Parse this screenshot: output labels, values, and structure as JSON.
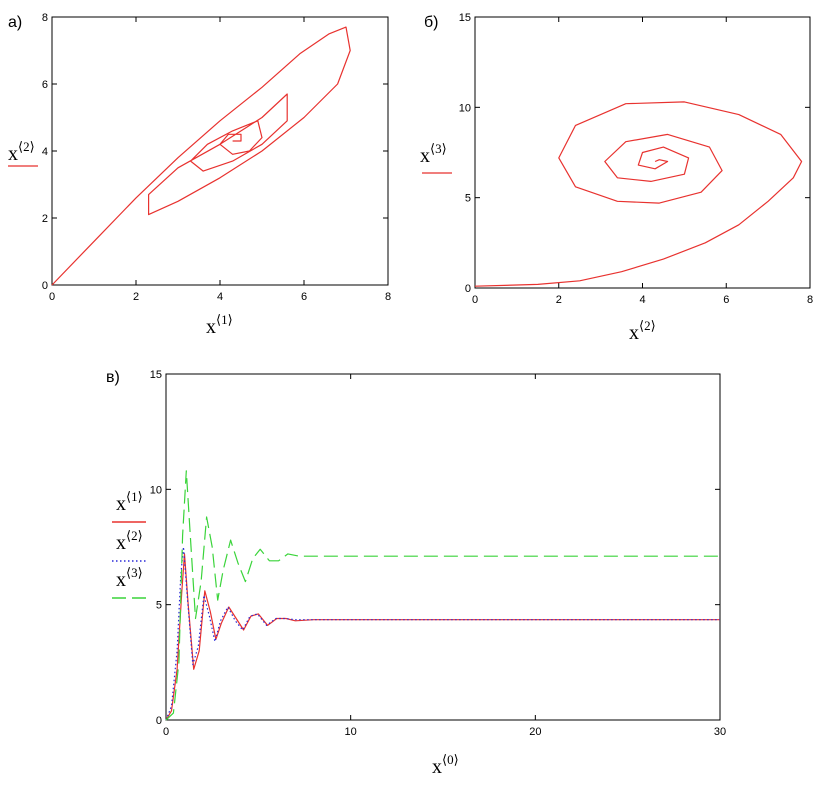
{
  "chart_data": [
    {
      "type": "line",
      "panel_label": "а)",
      "xlabel": {
        "base": "x",
        "sup": "⟨1⟩"
      },
      "ylabel": {
        "base": "x",
        "sup": "⟨2⟩"
      },
      "xlim": [
        0,
        8
      ],
      "ylim": [
        0,
        8
      ],
      "xticks": [
        "0",
        "2",
        "4",
        "6",
        "8"
      ],
      "yticks": [
        "0",
        "2",
        "4",
        "6",
        "8"
      ],
      "series": [
        {
          "color": "#e8322f",
          "dash": "solid",
          "x": [
            0.0,
            1.0,
            2.0,
            3.0,
            4.0,
            5.0,
            5.9,
            6.6,
            7.0,
            7.1,
            6.8,
            6.0,
            5.0,
            4.0,
            3.0,
            2.3,
            2.3,
            3.0,
            4.0,
            5.0,
            5.6,
            5.6,
            5.0,
            4.3,
            3.6,
            3.3,
            3.7,
            4.3,
            4.9,
            5.0,
            4.7,
            4.3,
            4.0,
            4.2,
            4.5,
            4.5,
            4.3
          ],
          "y": [
            0.0,
            1.3,
            2.6,
            3.8,
            4.9,
            5.9,
            6.9,
            7.5,
            7.7,
            7.0,
            6.0,
            5.0,
            4.0,
            3.2,
            2.5,
            2.1,
            2.7,
            3.5,
            4.2,
            5.0,
            5.7,
            4.9,
            4.2,
            3.7,
            3.4,
            3.7,
            4.2,
            4.6,
            4.9,
            4.4,
            4.0,
            3.9,
            4.2,
            4.5,
            4.5,
            4.3,
            4.3
          ]
        }
      ]
    },
    {
      "type": "line",
      "panel_label": "б)",
      "xlabel": {
        "base": "x",
        "sup": "⟨2⟩"
      },
      "ylabel": {
        "base": "x",
        "sup": "⟨3⟩"
      },
      "xlim": [
        0,
        8
      ],
      "ylim": [
        0,
        15
      ],
      "xticks": [
        "0",
        "2",
        "4",
        "6",
        "8"
      ],
      "yticks": [
        "0",
        "5",
        "10",
        "15"
      ],
      "series": [
        {
          "color": "#e8322f",
          "dash": "solid",
          "x": [
            0.0,
            1.5,
            2.5,
            3.5,
            4.5,
            5.5,
            6.3,
            7.0,
            7.6,
            7.8,
            7.3,
            6.3,
            5.0,
            3.6,
            2.4,
            2.0,
            2.4,
            3.4,
            4.4,
            5.4,
            5.9,
            5.6,
            4.6,
            3.6,
            3.1,
            3.4,
            4.2,
            5.0,
            5.1,
            4.5,
            4.0,
            3.9,
            4.3,
            4.6,
            4.4,
            4.3
          ],
          "y": [
            0.1,
            0.2,
            0.4,
            0.9,
            1.6,
            2.5,
            3.5,
            4.8,
            6.1,
            7.0,
            8.5,
            9.6,
            10.3,
            10.2,
            9.0,
            7.2,
            5.6,
            4.8,
            4.7,
            5.3,
            6.5,
            7.8,
            8.5,
            8.1,
            7.0,
            6.1,
            5.9,
            6.3,
            7.2,
            7.8,
            7.5,
            6.8,
            6.6,
            7.0,
            7.1,
            7.0
          ]
        }
      ]
    },
    {
      "type": "line",
      "panel_label": "в)",
      "xlabel": {
        "base": "x",
        "sup": "⟨0⟩"
      },
      "xlim": [
        0,
        30
      ],
      "ylim": [
        0,
        15
      ],
      "xticks": [
        "0",
        "10",
        "20",
        "30"
      ],
      "yticks": [
        "0",
        "5",
        "10",
        "15"
      ],
      "legend": [
        {
          "base": "x",
          "sup": "⟨1⟩",
          "color": "#e8322f",
          "dash": "solid"
        },
        {
          "base": "x",
          "sup": "⟨2⟩",
          "color": "#2a2ad8",
          "dash": "dotted"
        },
        {
          "base": "x",
          "sup": "⟨3⟩",
          "color": "#3ad43a",
          "dash": "dashed"
        }
      ],
      "series": [
        {
          "color": "#e8322f",
          "dash": "solid",
          "x": [
            0,
            0.3,
            0.6,
            0.85,
            1.0,
            1.2,
            1.5,
            1.8,
            2.1,
            2.4,
            2.7,
            3.0,
            3.4,
            3.8,
            4.2,
            4.6,
            5.0,
            5.5,
            6.0,
            6.5,
            7.0,
            8.0,
            9.0,
            12,
            16,
            20,
            25,
            30
          ],
          "y": [
            0,
            0.4,
            2.2,
            5.5,
            7.2,
            5.0,
            2.2,
            3.0,
            5.6,
            4.7,
            3.5,
            4.2,
            4.9,
            4.4,
            3.9,
            4.5,
            4.6,
            4.1,
            4.4,
            4.4,
            4.3,
            4.35,
            4.35,
            4.35,
            4.35,
            4.35,
            4.35,
            4.35
          ]
        },
        {
          "color": "#2a2ad8",
          "dash": "dotted",
          "x": [
            0,
            0.3,
            0.6,
            0.8,
            0.95,
            1.15,
            1.45,
            1.75,
            2.05,
            2.35,
            2.65,
            2.95,
            3.35,
            3.75,
            4.15,
            4.55,
            4.95,
            5.45,
            5.95,
            6.45,
            7.0,
            8.0,
            9.0,
            12,
            16,
            20,
            25,
            30
          ],
          "y": [
            0,
            0.6,
            3.0,
            6.3,
            7.5,
            5.4,
            2.4,
            3.2,
            5.4,
            4.5,
            3.4,
            4.3,
            4.9,
            4.3,
            3.9,
            4.5,
            4.6,
            4.1,
            4.4,
            4.4,
            4.35,
            4.35,
            4.35,
            4.35,
            4.35,
            4.35,
            4.35,
            4.35
          ]
        },
        {
          "color": "#3ad43a",
          "dash": "dashed",
          "x": [
            0,
            0.4,
            0.7,
            0.9,
            1.1,
            1.3,
            1.6,
            1.9,
            2.2,
            2.5,
            2.8,
            3.1,
            3.5,
            3.9,
            4.3,
            4.7,
            5.1,
            5.6,
            6.1,
            6.6,
            7.2,
            8.0,
            9.0,
            12,
            16,
            20,
            25,
            30
          ],
          "y": [
            0,
            0.3,
            2.5,
            8.0,
            10.8,
            8.2,
            4.4,
            6.0,
            8.8,
            7.5,
            5.2,
            6.5,
            7.8,
            6.8,
            6.0,
            7.0,
            7.4,
            6.9,
            6.9,
            7.2,
            7.1,
            7.1,
            7.1,
            7.1,
            7.1,
            7.1,
            7.1,
            7.1
          ]
        }
      ]
    }
  ]
}
